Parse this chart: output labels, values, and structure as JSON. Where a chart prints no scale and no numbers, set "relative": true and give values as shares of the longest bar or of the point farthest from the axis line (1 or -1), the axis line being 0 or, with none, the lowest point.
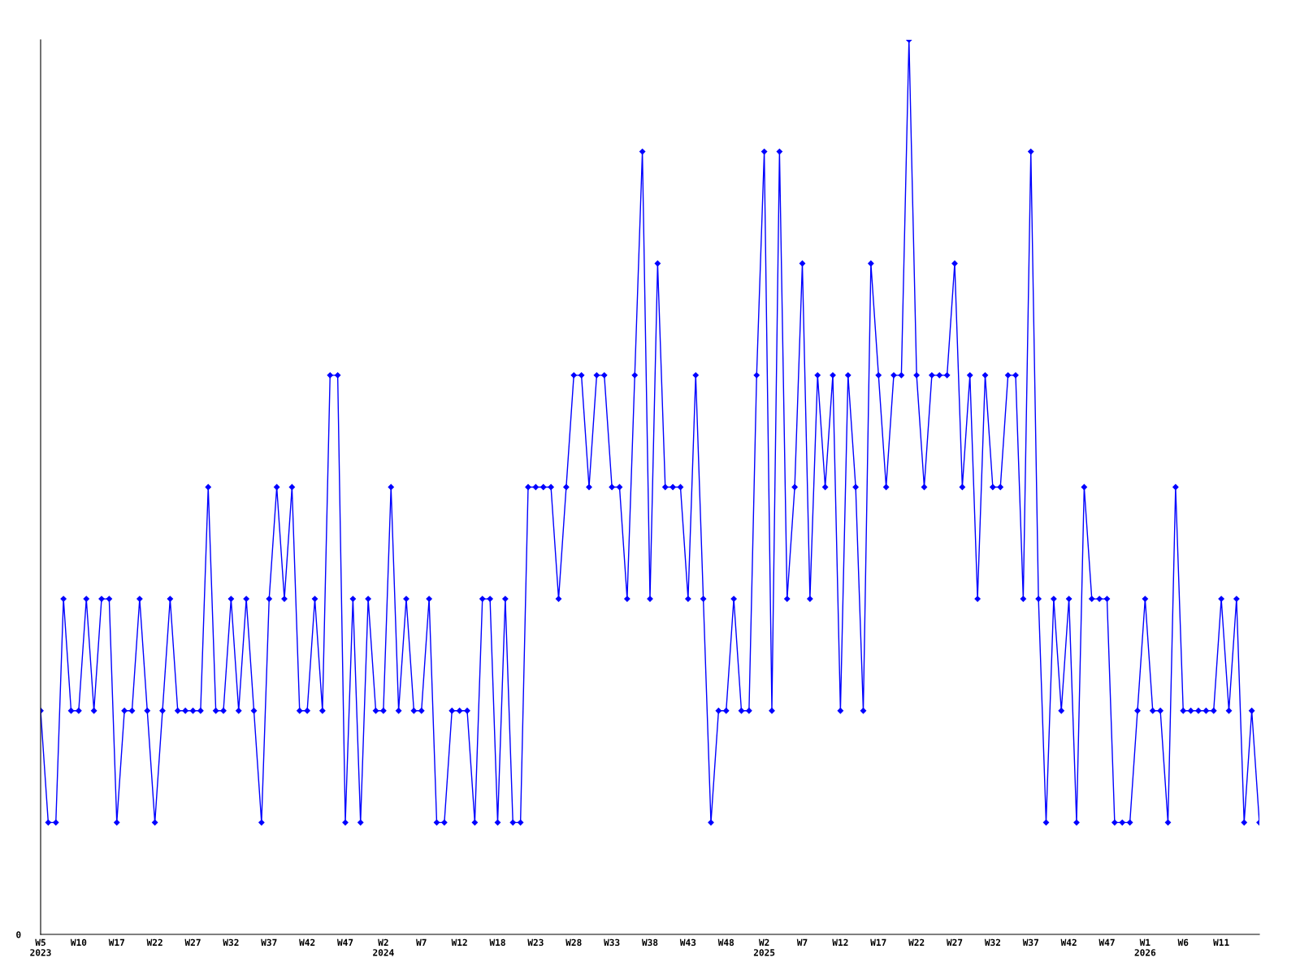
{
  "chart_data": {
    "type": "line",
    "relative": true,
    "color": "#0000ff",
    "marker": "diamond",
    "line_style": "solid",
    "grid": false,
    "annotations": [
      "0"
    ],
    "categories": [
      "W5\n2023",
      null,
      null,
      null,
      null,
      "W10",
      null,
      null,
      null,
      null,
      "W17",
      null,
      null,
      null,
      null,
      "W22",
      null,
      null,
      null,
      null,
      "W27",
      null,
      null,
      null,
      null,
      "W32",
      null,
      null,
      null,
      null,
      "W37",
      null,
      null,
      null,
      null,
      "W42",
      null,
      null,
      null,
      null,
      "W47",
      null,
      null,
      null,
      null,
      "W2\n2024",
      null,
      null,
      null,
      null,
      "W7",
      null,
      null,
      null,
      null,
      "W12",
      null,
      null,
      null,
      null,
      "W18",
      null,
      null,
      null,
      null,
      "W23",
      null,
      null,
      null,
      null,
      "W28",
      null,
      null,
      null,
      null,
      "W33",
      null,
      null,
      null,
      null,
      "W38",
      null,
      null,
      null,
      null,
      "W43",
      null,
      null,
      null,
      null,
      "W48",
      null,
      null,
      null,
      null,
      "W2\n2025",
      null,
      null,
      null,
      null,
      "W7",
      null,
      null,
      null,
      null,
      "W12",
      null,
      null,
      null,
      null,
      "W17",
      null,
      null,
      null,
      null,
      "W22",
      null,
      null,
      null,
      null,
      "W27",
      null,
      null,
      null,
      null,
      "W32",
      null,
      null,
      null,
      null,
      "W37",
      null,
      null,
      null,
      null,
      "W42",
      null,
      null,
      null,
      null,
      "W47",
      null,
      null,
      null,
      null,
      "W1\n2026",
      null,
      null,
      null,
      null,
      "W6",
      null,
      null,
      null,
      null,
      "W11",
      null,
      null,
      null,
      null,
      null
    ],
    "values": [
      0.25,
      0.125,
      0.125,
      0.375,
      0.25,
      0.25,
      0.375,
      0.25,
      0.375,
      0.375,
      0.125,
      0.25,
      0.25,
      0.375,
      0.25,
      0.125,
      0.25,
      0.375,
      0.25,
      0.25,
      0.25,
      0.25,
      0.5,
      0.25,
      0.25,
      0.375,
      0.25,
      0.375,
      0.25,
      0.125,
      0.375,
      0.5,
      0.375,
      0.5,
      0.25,
      0.25,
      0.375,
      0.25,
      0.625,
      0.625,
      0.125,
      0.375,
      0.125,
      0.375,
      0.25,
      0.25,
      0.5,
      0.25,
      0.375,
      0.25,
      0.25,
      0.375,
      0.125,
      0.125,
      0.25,
      0.25,
      0.25,
      0.125,
      0.375,
      0.375,
      0.125,
      0.375,
      0.125,
      0.125,
      0.5,
      0.5,
      0.5,
      0.5,
      0.375,
      0.5,
      0.625,
      0.625,
      0.5,
      0.625,
      0.625,
      0.5,
      0.5,
      0.375,
      0.625,
      0.875,
      0.375,
      0.75,
      0.5,
      0.5,
      0.5,
      0.375,
      0.625,
      0.375,
      0.125,
      0.25,
      0.25,
      0.375,
      0.25,
      0.25,
      0.625,
      0.875,
      0.25,
      0.875,
      0.375,
      0.5,
      0.75,
      0.375,
      0.625,
      0.5,
      0.625,
      0.25,
      0.625,
      0.5,
      0.25,
      0.75,
      0.625,
      0.5,
      0.625,
      0.625,
      1,
      0.625,
      0.5,
      0.625,
      0.625,
      0.625,
      0.75,
      0.5,
      0.625,
      0.375,
      0.625,
      0.5,
      0.5,
      0.625,
      0.625,
      0.375,
      0.875,
      0.375,
      0.125,
      0.375,
      0.25,
      0.375,
      0.125,
      0.5,
      0.375,
      0.375,
      0.375,
      0.125,
      0.125,
      0.125,
      0.25,
      0.375,
      0.25,
      0.25,
      0.125,
      0.5,
      0.25,
      0.25,
      0.25,
      0.25,
      0.25,
      0.375,
      0.25,
      0.375,
      0.125,
      0.25,
      0.125
    ]
  }
}
